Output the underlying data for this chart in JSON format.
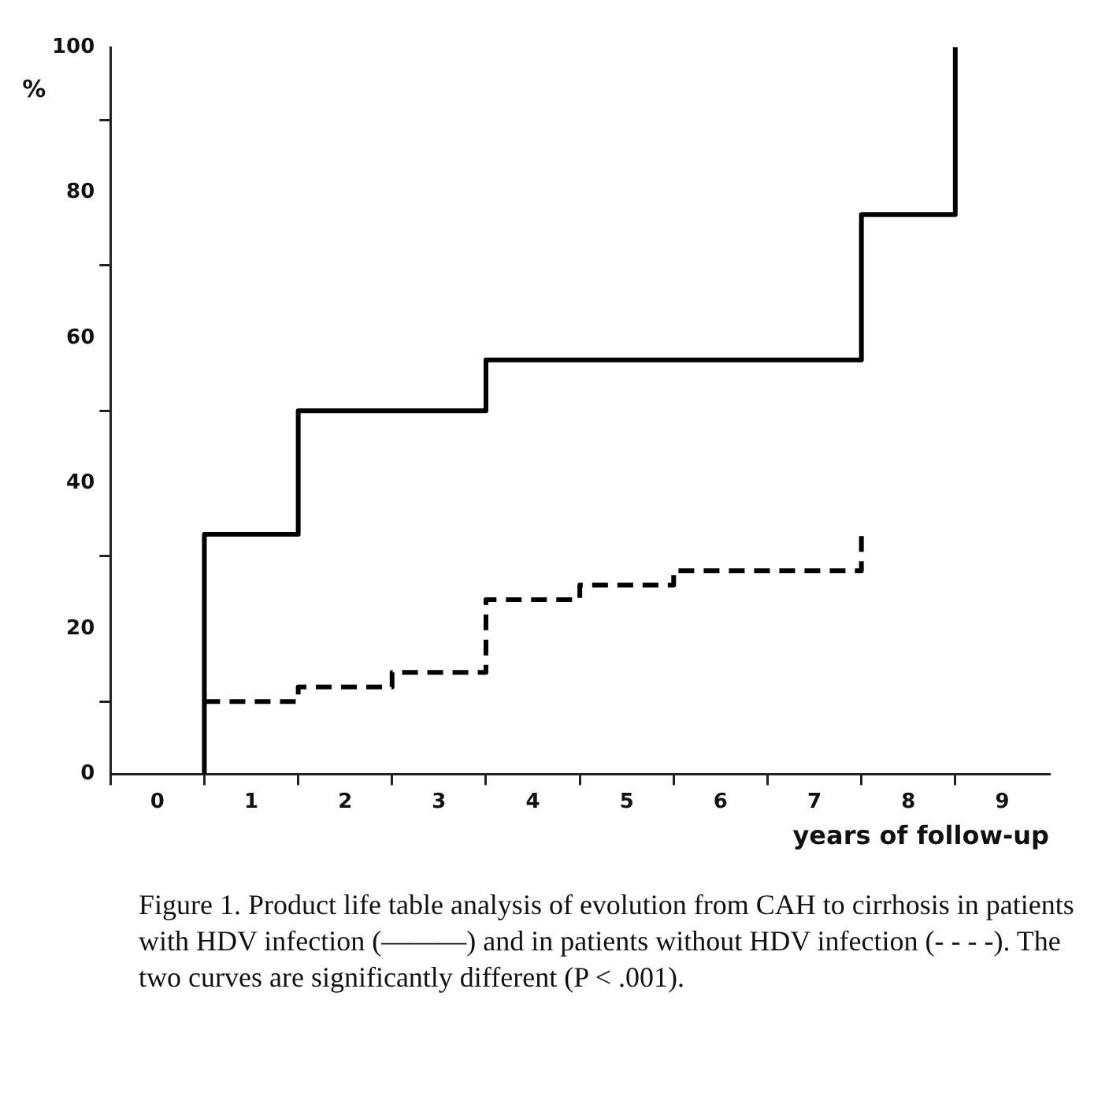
{
  "chart_data": {
    "type": "step",
    "xlabel": "years of follow-up",
    "ylabel": "%",
    "xlim": [
      -0.5,
      9.5
    ],
    "ylim": [
      0,
      100
    ],
    "xticks": [
      {
        "value": -0.5,
        "label": null
      },
      0,
      {
        "value": 0.5,
        "label": null
      },
      1,
      {
        "value": 1.5,
        "label": null
      },
      2,
      {
        "value": 2.5,
        "label": null
      },
      3,
      {
        "value": 3.5,
        "label": null
      },
      4,
      {
        "value": 4.5,
        "label": null
      },
      5,
      {
        "value": 5.5,
        "label": null
      },
      6,
      {
        "value": 6.5,
        "label": null
      },
      7,
      {
        "value": 7.5,
        "label": null
      },
      8,
      {
        "value": 8.5,
        "label": null
      },
      9
    ],
    "yticks": [
      0,
      {
        "value": 10,
        "label": null
      },
      20,
      {
        "value": 30,
        "label": null
      },
      40,
      {
        "value": 50,
        "label": null
      },
      60,
      {
        "value": 70,
        "label": null
      },
      80,
      {
        "value": 90,
        "label": null
      },
      100
    ],
    "series": [
      {
        "color": "#000000",
        "line_style": "solid",
        "x": [
          0.5,
          0.5,
          1.5,
          3.5,
          7.5,
          8.5
        ],
        "values": [
          0,
          33,
          50,
          57,
          77,
          100
        ]
      },
      {
        "color": "#000000",
        "line_style": "dashed",
        "x": [
          0.5,
          1.5,
          2.5,
          3.5,
          4.5,
          5.5,
          7.5
        ],
        "values": [
          10,
          12,
          14,
          24,
          26,
          28,
          33
        ]
      }
    ],
    "marker": "none",
    "grid": false,
    "legend": false,
    "annotations": [
      "Figure 1.   Product life table analysis of evolution from CAH to cirrhosis in patients with HDV infection (———) and in patients without HDV infection (- - - -). The two curves are significantly different (P < .001)."
    ]
  }
}
